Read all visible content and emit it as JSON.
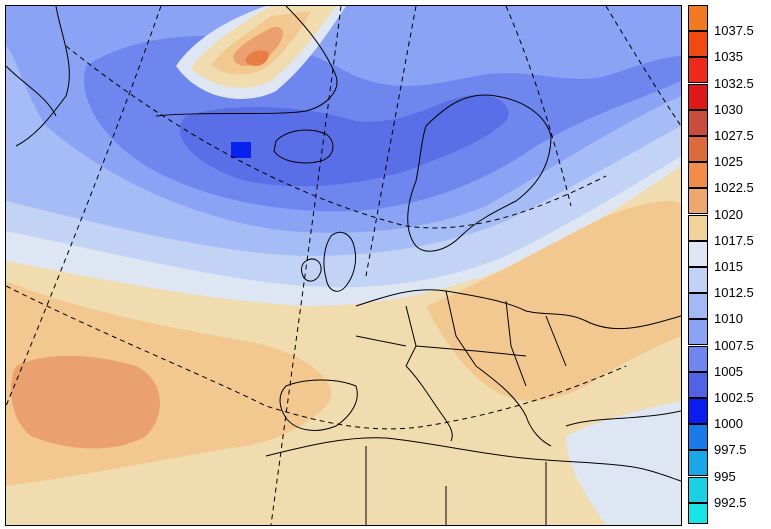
{
  "map": {
    "description_colors": {
      "1000": "#0a22ee",
      "1002.5": "#5a6ee8",
      "1005": "#6f86ee",
      "1007.5": "#8aa3f5",
      "1010": "#a9bef8",
      "1012.5": "#c8d6f7",
      "1015": "#dde6f2",
      "1017.5": "#f0dfae",
      "1020": "#f2c58f",
      "1022.5": "#eca173",
      "1025": "#e77c45"
    }
  },
  "legend": {
    "items": [
      {
        "label": "1037.5",
        "color": "#f07a22"
      },
      {
        "label": "1035",
        "color": "#f04a10"
      },
      {
        "label": "1032.5",
        "color": "#ee2a1c"
      },
      {
        "label": "1030",
        "color": "#dd1818"
      },
      {
        "label": "1027.5",
        "color": "#c94d3c"
      },
      {
        "label": "1025",
        "color": "#dd6a3c"
      },
      {
        "label": "1022.5",
        "color": "#f08d4a"
      },
      {
        "label": "1020",
        "color": "#eca86e"
      },
      {
        "label": "1017.5",
        "color": "#f2d49a"
      },
      {
        "label": "1015",
        "color": "#dde6f2"
      },
      {
        "label": "1012.5",
        "color": "#c0d2f5"
      },
      {
        "label": "1010",
        "color": "#a2b9f6"
      },
      {
        "label": "1007.5",
        "color": "#8aa3f5"
      },
      {
        "label": "1005",
        "color": "#6f86ee"
      },
      {
        "label": "1002.5",
        "color": "#5063e6"
      },
      {
        "label": "1000",
        "color": "#0a1cee"
      },
      {
        "label": "997.5",
        "color": "#1a7ae8"
      },
      {
        "label": "995",
        "color": "#1aa7e6"
      },
      {
        "label": "992.5",
        "color": "#1ad0e2"
      }
    ],
    "extra_bottom_color": "#18e6e6"
  }
}
